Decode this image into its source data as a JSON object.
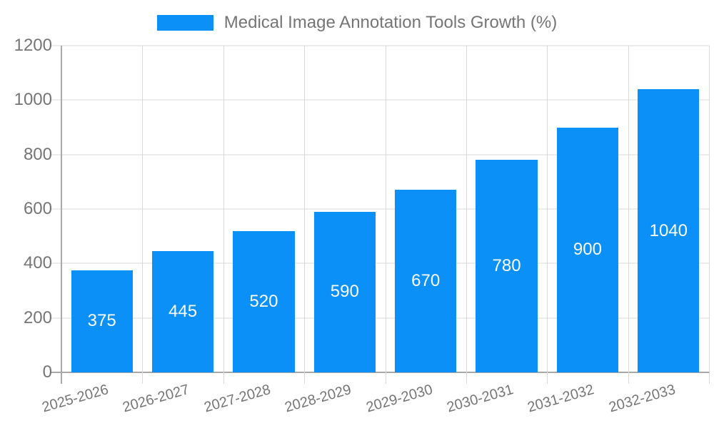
{
  "legend": {
    "label": "Medical Image Annotation Tools Growth (%)",
    "swatch_color": "#0a90f7"
  },
  "chart_data": {
    "type": "bar",
    "title": "",
    "xlabel": "",
    "ylabel": "",
    "categories": [
      "2025-2026",
      "2026-2027",
      "2027-2028",
      "2028-2029",
      "2029-2030",
      "2030-2031",
      "2031-2032",
      "2032-2033"
    ],
    "series": [
      {
        "name": "Medical Image Annotation Tools Growth (%)",
        "values": [
          375,
          445,
          520,
          590,
          670,
          780,
          900,
          1040
        ]
      }
    ],
    "value_labels": [
      "375",
      "445",
      "520",
      "590",
      "670",
      "780",
      "900",
      "1040"
    ],
    "ylim": [
      0,
      1200
    ],
    "yticks": [
      0,
      200,
      400,
      600,
      800,
      1000,
      1200
    ],
    "grid": true,
    "legend_position": "top-center",
    "x_tick_rotation_deg": -16,
    "colors": {
      "bar": "#0a90f7",
      "grid": "#d9d9d9",
      "axis": "#a8a8a8",
      "tick_text": "#757575",
      "value_text": "#ffffff",
      "background": "#ffffff"
    }
  }
}
